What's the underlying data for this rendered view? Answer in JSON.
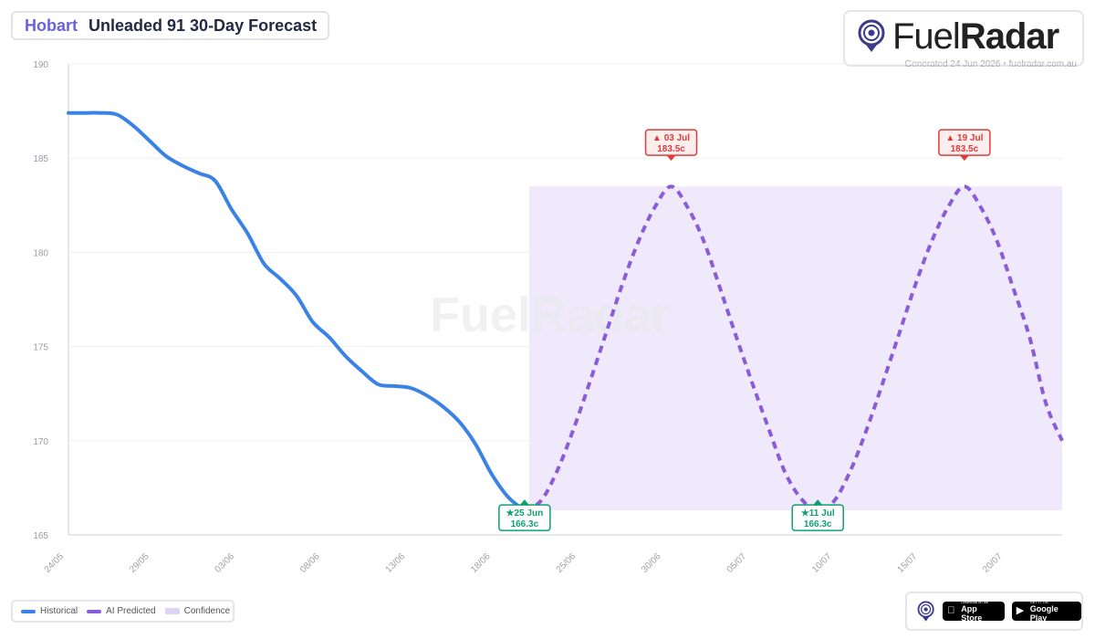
{
  "header": {
    "city": "Hobart",
    "title": "Unleaded 91 30-Day Forecast"
  },
  "brand": {
    "name_part1": "Fuel",
    "name_part2": "Radar",
    "generated": "Generated 24 Jun 2026 • fuelradar.com.au"
  },
  "watermark": {
    "text": "FuelRadar"
  },
  "legend": {
    "items": [
      {
        "label": "Historical",
        "color": "#3b82e6"
      },
      {
        "label": "AI Predicted",
        "color": "#8b5cd9"
      },
      {
        "label": "Confidence",
        "color": "#ddd4f7"
      }
    ]
  },
  "stores": {
    "apple_small": "Download on the",
    "apple_big": "App Store",
    "google_small": "GET IT ON",
    "google_big": "Google Play"
  },
  "colors": {
    "historical": "#3b82e6",
    "predicted": "#8b5cd9",
    "confidence": "#efe9fb",
    "low_marker": "#10a070",
    "high_marker": "#e03a3a",
    "accent": "#6b63d9"
  },
  "chart_data": {
    "type": "line",
    "title": "Unleaded 91 30-Day Forecast",
    "xlabel": "",
    "ylabel": "",
    "ylim": [
      165,
      190
    ],
    "y_ticks": [
      165,
      170,
      175,
      180,
      185,
      190
    ],
    "x_ticks": [
      "24/05",
      "29/05",
      "03/06",
      "08/06",
      "13/06",
      "18/06",
      "25/06",
      "30/06",
      "05/07",
      "10/07",
      "15/07",
      "20/07"
    ],
    "grid": true,
    "legend_position": "bottom-left",
    "series": [
      {
        "name": "Historical",
        "style": "solid",
        "x": [
          0,
          1,
          2,
          3,
          4,
          5,
          6,
          7,
          8,
          9,
          10,
          11,
          12,
          13,
          14,
          15,
          16,
          17,
          18,
          19,
          20,
          21,
          22,
          23,
          24,
          25,
          26,
          27,
          28
        ],
        "values": [
          187.4,
          187.4,
          187.4,
          187.3,
          186.7,
          185.9,
          185.1,
          184.6,
          184.2,
          183.8,
          182.3,
          181.0,
          179.4,
          178.6,
          177.7,
          176.3,
          175.5,
          174.5,
          173.7,
          173.0,
          172.9,
          172.8,
          172.4,
          171.8,
          171.0,
          169.8,
          168.2,
          167.0,
          166.3
        ]
      },
      {
        "name": "AI Predicted",
        "style": "dashed",
        "x": [
          28,
          29,
          30,
          31,
          32,
          33,
          34,
          35,
          36,
          37,
          38,
          39,
          40,
          41,
          42,
          43,
          44,
          45,
          46,
          47,
          48,
          49,
          50,
          51,
          52,
          53,
          54,
          55,
          56
        ],
        "values": [
          166.3,
          166.8,
          168.4,
          170.6,
          173.1,
          175.7,
          178.3,
          180.6,
          182.4,
          183.5,
          182.4,
          180.6,
          178.1,
          175.5,
          173.0,
          170.6,
          168.3,
          166.9,
          166.3,
          166.8,
          168.4,
          170.6,
          173.1,
          175.7,
          178.3,
          180.6,
          182.4,
          183.5,
          182.4
        ]
      }
    ],
    "extra_points": {
      "x": [
        57,
        58,
        59,
        60,
        61
      ],
      "values": [
        180.6,
        178.1,
        175.5,
        172.0,
        170.0
      ]
    },
    "confidence_band": {
      "x_start": 28,
      "x_end": 61,
      "low": 166.3,
      "high": 183.5
    },
    "annotations": [
      {
        "kind": "low",
        "date": "25 Jun",
        "value": "166.3c",
        "x": 28,
        "y": 166.3
      },
      {
        "kind": "high",
        "date": "03 Jul",
        "value": "183.5c",
        "x": 37,
        "y": 183.5
      },
      {
        "kind": "low",
        "date": "11 Jul",
        "value": "166.3c",
        "x": 46,
        "y": 166.3
      },
      {
        "kind": "high",
        "date": "19 Jul",
        "value": "183.5c",
        "x": 55,
        "y": 183.5
      }
    ]
  }
}
